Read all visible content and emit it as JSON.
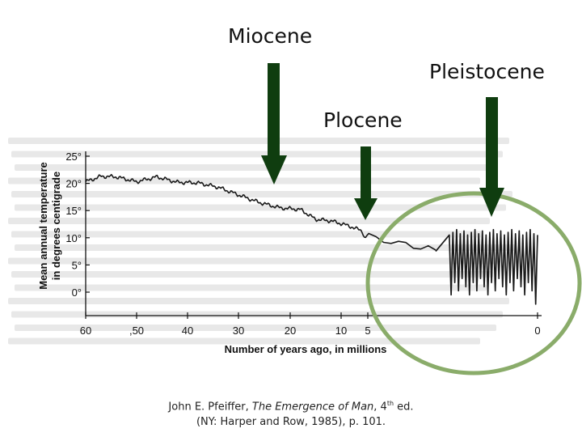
{
  "annotations": {
    "miocene": "Miocene",
    "pleistocene": "Pleistocene",
    "plocene": "Plocene"
  },
  "citation": {
    "line1_prefix": "John E. Pfeiffer, ",
    "line1_title": "The Emergence of Man",
    "line1_edition_num": ", 4",
    "line1_edition_sup": "th",
    "line1_edition_rest": " ed.",
    "line2": "(NY: Harper and Row, 1985), p. 101."
  },
  "colors": {
    "arrow": "#0f3d0f",
    "highlight_ellipse": "#8aac6a",
    "curve": "#1a1a1a"
  },
  "chart_data": {
    "type": "line",
    "title": "",
    "xlabel": "Number of years ago, in millions",
    "ylabel_line1": "Mean annual temperature",
    "ylabel_line2": "in degrees centigrade",
    "x_ticks": [
      "60",
      ",50",
      "40",
      "30",
      "20",
      "10",
      "5",
      "0"
    ],
    "x_tick_values": [
      60,
      50,
      40,
      30,
      20,
      10,
      5,
      0
    ],
    "y_ticks": [
      "25°",
      "20°",
      "15°",
      "10°",
      "5°",
      "0°"
    ],
    "y_tick_values": [
      25,
      20,
      15,
      10,
      5,
      0
    ],
    "xlim": [
      60,
      0
    ],
    "ylim": [
      0,
      25
    ],
    "series": [
      {
        "x": [
          60,
          57,
          54,
          50,
          46,
          42,
          38,
          34,
          30,
          26,
          22,
          18,
          15,
          12,
          10,
          8,
          6,
          5.5,
          5,
          4.5,
          4,
          3.6,
          3.2,
          3
        ],
        "y": [
          20.3,
          21.3,
          21.2,
          20.3,
          21.2,
          20.2,
          20.1,
          19.3,
          17.9,
          16.5,
          15.5,
          15.2,
          13.4,
          13.1,
          12.6,
          12.0,
          11.2,
          9.8,
          10.8,
          8.8,
          9.6,
          8.1,
          8.5,
          7.5
        ]
      },
      {
        "x_start": 2.6,
        "x_end": 0,
        "oscillation_cycles": 24,
        "y_high": [
          10.5,
          11.5
        ],
        "y_low": [
          -0.5,
          2.5
        ],
        "final_low": -2.2
      }
    ]
  }
}
